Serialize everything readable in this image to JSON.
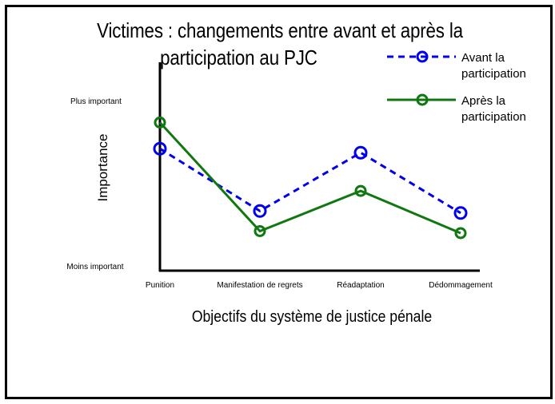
{
  "chart_data": {
    "type": "line",
    "title_line1": "Victimes : changements entre avant et après la",
    "title_line2": "participation au PJC",
    "xlabel": "Objectifs du système de justice pénale",
    "ylabel": "Importance",
    "ytick_top": "Plus important",
    "ytick_bottom": "Moins important",
    "categories": [
      "Punition",
      "Manifestation de regrets",
      "Réadaptation",
      "Dédommagement"
    ],
    "ylim": [
      0,
      10
    ],
    "series": [
      {
        "name_line1": "Avant la",
        "name_line2": "participation",
        "values": [
          6.7,
          3.6,
          6.5,
          3.5
        ],
        "color": "#0000ee",
        "style": "dashed"
      },
      {
        "name_line1": "Après la",
        "name_line2": "participation",
        "values": [
          8.0,
          2.6,
          4.6,
          2.5
        ],
        "color": "#117711",
        "style": "solid"
      }
    ],
    "grid": false,
    "legend_position": "top-right"
  }
}
